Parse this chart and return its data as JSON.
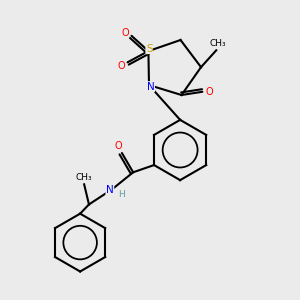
{
  "background_color": "#ebebeb",
  "bond_color": "#000000",
  "atom_colors": {
    "S": "#c8a000",
    "N": "#0000ff",
    "O": "#ff0000",
    "C": "#000000",
    "H": "#5f9ea0"
  }
}
